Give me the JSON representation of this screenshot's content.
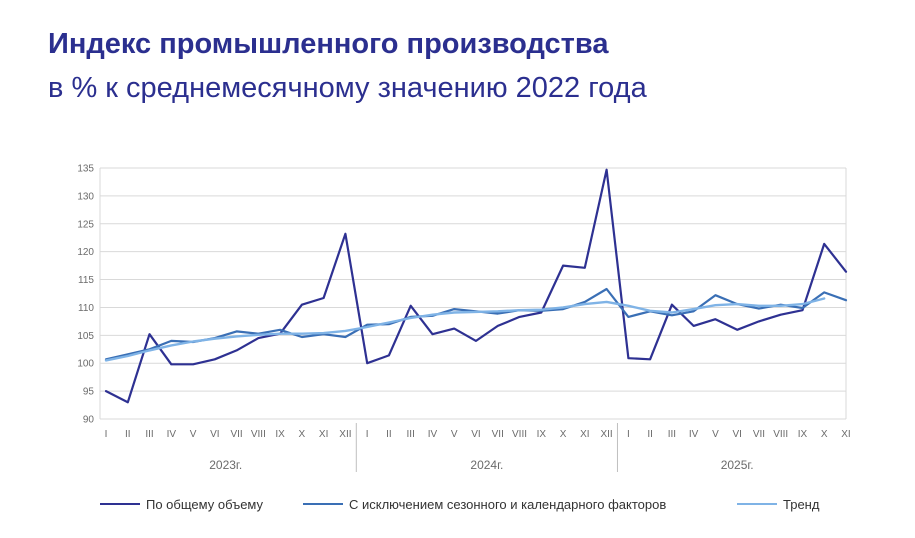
{
  "title": "Индекс промышленного производства",
  "subtitle": "в % к среднемесячному значению 2022 года",
  "colors": {
    "title": "#2b2f8f",
    "series_total": "#2e3192",
    "series_adjusted": "#3a6fb5",
    "series_trend": "#7fb3e6",
    "grid": "#d9d9d9",
    "axis_text": "#6b6b6b"
  },
  "chart_data": {
    "type": "line",
    "title": "Индекс промышленного производства",
    "subtitle": "в % к среднемесячному значению 2022 года",
    "xlabel": "",
    "ylabel": "",
    "ylim": [
      90,
      135
    ],
    "yticks": [
      90,
      95,
      100,
      105,
      110,
      115,
      120,
      125,
      130,
      135
    ],
    "grid": true,
    "legend_position": "bottom",
    "categories": [
      "I",
      "II",
      "III",
      "IV",
      "V",
      "VI",
      "VII",
      "VIII",
      "IX",
      "X",
      "XI",
      "XII",
      "I",
      "II",
      "III",
      "IV",
      "V",
      "VI",
      "VII",
      "VIII",
      "IX",
      "X",
      "XI",
      "XII",
      "I",
      "II",
      "III",
      "IV",
      "V",
      "VI",
      "VII",
      "VIII",
      "IX",
      "X",
      "XI"
    ],
    "year_groups": [
      {
        "label": "2023г.",
        "start": 0,
        "count": 12
      },
      {
        "label": "2024г.",
        "start": 12,
        "count": 12
      },
      {
        "label": "2025г.",
        "start": 24,
        "count": 11
      }
    ],
    "series": [
      {
        "name": "По общему объему",
        "color": "#2e3192",
        "width": 2.2,
        "values": [
          95.0,
          93.0,
          105.2,
          99.8,
          99.8,
          100.7,
          102.3,
          104.5,
          105.3,
          110.5,
          111.7,
          123.2,
          100.0,
          101.4,
          110.3,
          105.2,
          106.2,
          104.0,
          106.7,
          108.3,
          109.1,
          117.5,
          117.1,
          134.7,
          100.9,
          100.7,
          110.5,
          106.7,
          107.9,
          106.0,
          107.5,
          108.7,
          109.5,
          121.4,
          116.4
        ]
      },
      {
        "name": "С исключением сезонного и календарного факторов",
        "color": "#3a6fb5",
        "width": 2.2,
        "values": [
          100.7,
          101.6,
          102.5,
          104.0,
          103.8,
          104.5,
          105.7,
          105.3,
          106.0,
          104.7,
          105.2,
          104.7,
          106.9,
          107.0,
          108.3,
          108.5,
          109.7,
          109.3,
          108.9,
          109.5,
          109.4,
          109.7,
          111.0,
          113.3,
          108.3,
          109.3,
          108.6,
          109.3,
          112.2,
          110.6,
          109.8,
          110.5,
          109.9,
          112.7,
          111.3
        ]
      },
      {
        "name": "Тренд",
        "color": "#7fb3e6",
        "width": 2.4,
        "values": [
          100.5,
          101.3,
          102.3,
          103.2,
          103.9,
          104.4,
          104.8,
          105.1,
          105.3,
          105.3,
          105.4,
          105.8,
          106.5,
          107.3,
          108.1,
          108.7,
          109.1,
          109.2,
          109.3,
          109.5,
          109.6,
          110.0,
          110.6,
          111.0,
          110.3,
          109.4,
          109.1,
          109.7,
          110.4,
          110.6,
          110.3,
          110.3,
          110.6,
          111.6,
          null
        ]
      }
    ]
  }
}
